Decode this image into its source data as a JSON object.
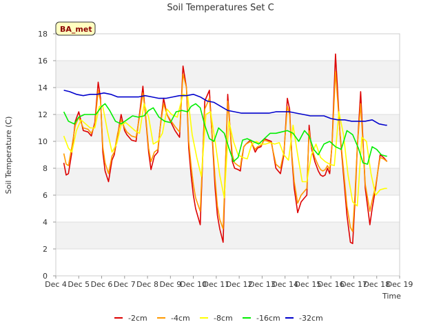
{
  "chart_data": {
    "type": "line",
    "title": "Soil Temperatures Set C",
    "xlabel": "Time",
    "ylabel": "Soil Temperature (C)",
    "ylim": [
      0,
      18
    ],
    "yticks": [
      0,
      2,
      4,
      6,
      8,
      10,
      12,
      14,
      16,
      18
    ],
    "xlim": [
      4,
      19
    ],
    "xticks": [
      {
        "pos": 4,
        "label": "Dec 4"
      },
      {
        "pos": 5,
        "label": "Dec 5"
      },
      {
        "pos": 6,
        "label": "Dec 6"
      },
      {
        "pos": 7,
        "label": "Dec 7"
      },
      {
        "pos": 8,
        "label": "Dec 8"
      },
      {
        "pos": 9,
        "label": "Dec 9"
      },
      {
        "pos": 10,
        "label": "Dec 10"
      },
      {
        "pos": 11,
        "label": "Dec 11"
      },
      {
        "pos": 12,
        "label": "Dec 12"
      },
      {
        "pos": 13,
        "label": "Dec 13"
      },
      {
        "pos": 14,
        "label": "Dec 14"
      },
      {
        "pos": 15,
        "label": "Dec 15"
      },
      {
        "pos": 16,
        "label": "Dec 16"
      },
      {
        "pos": 17,
        "label": "Dec 17"
      },
      {
        "pos": 18,
        "label": "Dec 18"
      },
      {
        "pos": 19,
        "label": "Dec 19"
      }
    ],
    "grid": true,
    "legend_position": "bottom",
    "badge": "BA_met",
    "series": [
      {
        "name": "-2cm",
        "color": "#dd0000",
        "x": [
          4.35,
          4.45,
          4.55,
          4.7,
          4.85,
          5.0,
          5.2,
          5.4,
          5.55,
          5.7,
          5.85,
          5.95,
          6.05,
          6.15,
          6.3,
          6.45,
          6.55,
          6.7,
          6.85,
          7.0,
          7.1,
          7.3,
          7.5,
          7.65,
          7.8,
          7.9,
          8.05,
          8.15,
          8.3,
          8.45,
          8.55,
          8.7,
          8.85,
          9.0,
          9.2,
          9.4,
          9.55,
          9.7,
          9.8,
          9.9,
          10.0,
          10.1,
          10.3,
          10.5,
          10.7,
          10.85,
          10.95,
          11.05,
          11.15,
          11.3,
          11.5,
          11.7,
          11.8,
          11.95,
          12.05,
          12.1,
          12.2,
          12.3,
          12.5,
          12.7,
          12.8,
          12.95,
          13.1,
          13.25,
          13.4,
          13.6,
          13.8,
          13.95,
          14.1,
          14.2,
          14.3,
          14.4,
          14.55,
          14.7,
          14.85,
          14.95,
          15.05,
          15.15,
          15.3,
          15.45,
          15.55,
          15.65,
          15.75,
          15.85,
          15.95,
          16.05,
          16.2,
          16.4,
          16.6,
          16.7,
          16.85,
          16.95,
          17.05,
          17.15,
          17.3,
          17.5,
          17.7,
          17.8,
          17.95,
          18.05,
          18.15,
          18.3,
          18.45
        ],
        "y": [
          8.4,
          7.5,
          7.6,
          9.2,
          11.5,
          12.2,
          10.8,
          10.7,
          10.4,
          11.4,
          14.4,
          13.2,
          9.2,
          7.8,
          7.0,
          8.6,
          9.0,
          10.5,
          12.0,
          10.8,
          10.5,
          10.1,
          10.0,
          12.0,
          14.1,
          12.2,
          9.2,
          7.9,
          8.9,
          9.2,
          11.0,
          13.2,
          12.0,
          11.5,
          10.8,
          10.3,
          15.6,
          14.0,
          9.5,
          7.5,
          6.0,
          5.0,
          3.8,
          13.0,
          13.8,
          9.5,
          6.5,
          4.5,
          3.5,
          2.5,
          13.5,
          8.5,
          8.0,
          7.9,
          7.8,
          8.5,
          9.6,
          9.8,
          10.1,
          9.2,
          9.5,
          9.6,
          10.2,
          10.1,
          10.0,
          8.0,
          7.6,
          9.0,
          13.2,
          12.4,
          8.8,
          6.5,
          4.7,
          5.5,
          5.8,
          6.0,
          11.2,
          9.5,
          8.5,
          7.8,
          7.5,
          7.4,
          7.5,
          8.0,
          7.6,
          9.8,
          16.5,
          10.5,
          6.5,
          4.5,
          2.5,
          2.4,
          5.5,
          9.5,
          13.7,
          6.5,
          3.8,
          5.0,
          6.5,
          7.8,
          9.0,
          8.8,
          8.5
        ]
      },
      {
        "name": "-4cm",
        "color": "#ff9900",
        "x": [
          4.35,
          4.45,
          4.55,
          4.7,
          4.85,
          5.0,
          5.2,
          5.4,
          5.55,
          5.7,
          5.85,
          5.95,
          6.05,
          6.15,
          6.3,
          6.45,
          6.55,
          6.7,
          6.85,
          7.0,
          7.1,
          7.3,
          7.5,
          7.65,
          7.8,
          7.9,
          8.05,
          8.15,
          8.3,
          8.45,
          8.55,
          8.7,
          8.85,
          9.0,
          9.2,
          9.4,
          9.55,
          9.7,
          9.8,
          9.9,
          10.0,
          10.1,
          10.3,
          10.5,
          10.7,
          10.85,
          10.95,
          11.05,
          11.15,
          11.3,
          11.5,
          11.7,
          11.8,
          11.95,
          12.05,
          12.1,
          12.2,
          12.3,
          12.5,
          12.7,
          12.8,
          12.95,
          13.1,
          13.25,
          13.4,
          13.6,
          13.8,
          13.95,
          14.1,
          14.2,
          14.3,
          14.4,
          14.55,
          14.7,
          14.85,
          14.95,
          15.05,
          15.15,
          15.3,
          15.45,
          15.55,
          15.65,
          15.75,
          15.85,
          15.95,
          16.05,
          16.2,
          16.4,
          16.6,
          16.7,
          16.85,
          16.95,
          17.05,
          17.15,
          17.3,
          17.5,
          17.7,
          17.8,
          17.95,
          18.05,
          18.15,
          18.3,
          18.45
        ],
        "y": [
          9.1,
          8.3,
          8.2,
          9.6,
          11.2,
          11.8,
          11.0,
          10.9,
          10.6,
          11.2,
          13.8,
          13.0,
          9.6,
          8.4,
          7.6,
          8.9,
          9.2,
          10.6,
          11.6,
          11.0,
          10.7,
          10.4,
          10.3,
          11.8,
          13.6,
          12.3,
          9.5,
          8.5,
          9.2,
          9.4,
          11.0,
          12.8,
          12.0,
          11.6,
          11.1,
          10.7,
          15.0,
          14.0,
          10.0,
          8.2,
          6.8,
          5.8,
          4.8,
          12.4,
          13.2,
          9.8,
          7.2,
          5.2,
          4.2,
          3.5,
          13.0,
          9.0,
          8.4,
          8.2,
          8.1,
          8.7,
          9.6,
          9.8,
          10.0,
          9.4,
          9.6,
          9.7,
          10.1,
          10.0,
          9.9,
          8.3,
          8.0,
          9.2,
          12.6,
          12.0,
          9.0,
          7.0,
          5.4,
          6.0,
          6.3,
          6.5,
          10.8,
          9.6,
          8.8,
          8.2,
          7.9,
          7.8,
          7.9,
          8.2,
          7.9,
          9.7,
          15.2,
          10.6,
          7.0,
          5.2,
          3.6,
          3.3,
          6.0,
          9.6,
          12.8,
          6.8,
          4.8,
          5.6,
          6.7,
          7.8,
          8.8,
          8.7,
          8.5
        ]
      },
      {
        "name": "-8cm",
        "color": "#ffff00",
        "x": [
          4.35,
          4.55,
          4.7,
          4.9,
          5.1,
          5.3,
          5.5,
          5.7,
          5.9,
          6.05,
          6.25,
          6.45,
          6.65,
          6.85,
          7.05,
          7.25,
          7.45,
          7.65,
          7.85,
          8.05,
          8.25,
          8.45,
          8.65,
          8.85,
          9.05,
          9.3,
          9.55,
          9.75,
          9.95,
          10.15,
          10.35,
          10.55,
          10.75,
          10.95,
          11.15,
          11.35,
          11.55,
          11.75,
          11.95,
          12.15,
          12.35,
          12.55,
          12.75,
          12.95,
          13.15,
          13.35,
          13.55,
          13.75,
          13.95,
          14.15,
          14.35,
          14.55,
          14.75,
          14.95,
          15.15,
          15.35,
          15.55,
          15.75,
          15.95,
          16.15,
          16.35,
          16.55,
          16.75,
          16.95,
          17.15,
          17.35,
          17.55,
          17.75,
          17.95,
          18.15,
          18.35,
          18.45
        ],
        "y": [
          10.4,
          9.5,
          9.2,
          10.8,
          11.6,
          11.3,
          11.0,
          11.0,
          12.6,
          12.6,
          10.8,
          9.2,
          9.8,
          11.2,
          11.4,
          11.1,
          10.8,
          10.6,
          12.8,
          11.8,
          9.8,
          10.0,
          10.6,
          12.4,
          12.0,
          11.8,
          13.5,
          13.4,
          10.5,
          8.8,
          7.4,
          12.0,
          12.2,
          10.0,
          7.5,
          5.8,
          11.5,
          10.0,
          9.0,
          8.8,
          8.7,
          9.8,
          10.0,
          9.8,
          9.8,
          9.9,
          9.8,
          9.9,
          9.0,
          8.6,
          11.2,
          9.0,
          7.0,
          7.0,
          9.0,
          9.8,
          8.8,
          8.5,
          8.3,
          8.2,
          12.2,
          10.5,
          7.5,
          5.5,
          5.2,
          10.3,
          10.0,
          7.6,
          6.0,
          6.4,
          6.5,
          6.5
        ]
      },
      {
        "name": "-16cm",
        "color": "#00ee00",
        "x": [
          4.35,
          4.55,
          4.8,
          5.0,
          5.25,
          5.5,
          5.75,
          6.0,
          6.15,
          6.35,
          6.6,
          6.85,
          7.1,
          7.35,
          7.6,
          7.85,
          8.05,
          8.25,
          8.5,
          8.75,
          9.0,
          9.25,
          9.5,
          9.75,
          9.9,
          10.1,
          10.3,
          10.5,
          10.7,
          10.9,
          11.1,
          11.35,
          11.55,
          11.75,
          11.95,
          12.15,
          12.35,
          12.6,
          12.85,
          13.1,
          13.35,
          13.6,
          13.85,
          14.1,
          14.35,
          14.6,
          14.85,
          15.05,
          15.25,
          15.45,
          15.7,
          15.95,
          16.2,
          16.45,
          16.7,
          16.95,
          17.2,
          17.4,
          17.6,
          17.8,
          18.0,
          18.2,
          18.4,
          18.45
        ],
        "y": [
          12.2,
          11.5,
          11.3,
          11.8,
          12.0,
          12.0,
          12.0,
          12.6,
          12.8,
          12.3,
          11.5,
          11.3,
          11.6,
          11.9,
          11.8,
          11.9,
          12.3,
          12.5,
          11.8,
          11.5,
          11.4,
          12.2,
          12.3,
          12.2,
          12.6,
          12.8,
          12.5,
          11.2,
          10.2,
          10.0,
          11.0,
          10.6,
          9.5,
          8.5,
          8.8,
          10.1,
          10.2,
          10.0,
          9.8,
          10.2,
          10.6,
          10.6,
          10.7,
          10.8,
          10.6,
          10.0,
          10.8,
          10.4,
          9.4,
          9.0,
          9.8,
          10.0,
          9.6,
          9.4,
          10.8,
          10.5,
          9.5,
          8.4,
          8.3,
          9.6,
          9.4,
          9.0,
          8.9,
          8.9
        ]
      },
      {
        "name": "-32cm",
        "color": "#0000cc",
        "x": [
          4.35,
          4.6,
          4.9,
          5.2,
          5.5,
          5.8,
          6.1,
          6.4,
          6.7,
          7.0,
          7.3,
          7.6,
          7.9,
          8.2,
          8.5,
          8.8,
          9.1,
          9.4,
          9.7,
          10.0,
          10.3,
          10.6,
          10.9,
          11.2,
          11.5,
          11.8,
          12.1,
          12.4,
          12.7,
          13.0,
          13.3,
          13.6,
          13.9,
          14.2,
          14.5,
          14.8,
          15.1,
          15.4,
          15.7,
          16.0,
          16.3,
          16.6,
          16.9,
          17.2,
          17.5,
          17.8,
          18.1,
          18.4,
          18.45
        ],
        "y": [
          13.8,
          13.7,
          13.5,
          13.4,
          13.5,
          13.5,
          13.6,
          13.5,
          13.3,
          13.3,
          13.3,
          13.3,
          13.4,
          13.3,
          13.2,
          13.2,
          13.3,
          13.4,
          13.4,
          13.5,
          13.3,
          13.0,
          12.9,
          12.6,
          12.3,
          12.2,
          12.1,
          12.1,
          12.1,
          12.1,
          12.1,
          12.2,
          12.2,
          12.2,
          12.1,
          12.0,
          11.9,
          11.9,
          11.9,
          11.7,
          11.6,
          11.6,
          11.5,
          11.5,
          11.5,
          11.6,
          11.3,
          11.2,
          11.2
        ]
      }
    ]
  }
}
